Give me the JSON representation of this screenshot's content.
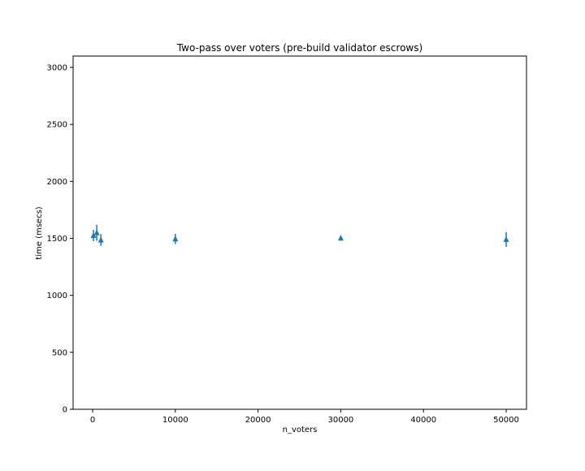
{
  "chart_data": {
    "type": "scatter",
    "title": "Two-pass over voters (pre-build validator escrows)",
    "xlabel": "n_voters",
    "ylabel": "time (msecs)",
    "xlim": [
      -2358,
      52456
    ],
    "ylim": [
      0,
      3100
    ],
    "xticks": [
      0,
      10000,
      20000,
      30000,
      40000,
      50000
    ],
    "yticks": [
      0,
      500,
      1000,
      1500,
      2000,
      2500,
      3000
    ],
    "grid": false,
    "marker": "triangle-up",
    "color": "#1f77b4",
    "points": [
      {
        "x": 100,
        "y": 1525,
        "err": 50
      },
      {
        "x": 500,
        "y": 1549,
        "err": 70
      },
      {
        "x": 1000,
        "y": 1486,
        "err": 52
      },
      {
        "x": 10000,
        "y": 1495,
        "err": 45
      },
      {
        "x": 30000,
        "y": 1502,
        "err": 22
      },
      {
        "x": 50000,
        "y": 1490,
        "err": 65
      }
    ]
  }
}
